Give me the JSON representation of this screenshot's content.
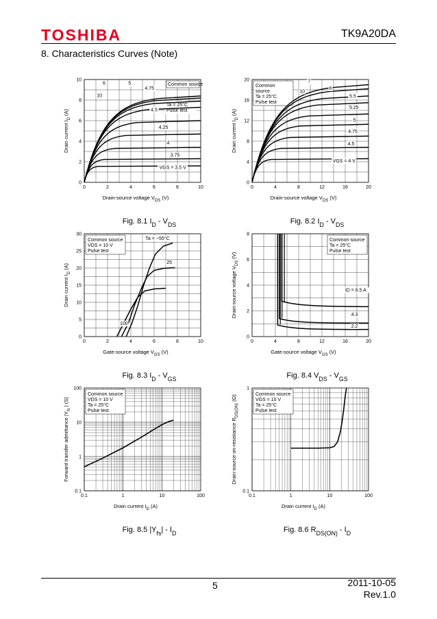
{
  "header": {
    "brand": "TOSHIBA",
    "part_number": "TK9A20DA",
    "brand_color": "#e5001e"
  },
  "section_title": "8.  Characteristics Curves (Note)",
  "footer": {
    "page": "5",
    "date": "2011-10-05",
    "revision": "Rev.1.0"
  },
  "chart_data": [
    {
      "id": "fig81",
      "type": "line",
      "caption_fig": "Fig. 8.1",
      "caption_main": "I",
      "caption_sub1": "D",
      "caption_sep": " - V",
      "caption_sub2": "DS",
      "ylabel_main": "Drain current",
      "ylabel_sym": "I",
      "ylabel_sub": "D",
      "ylabel_unit": "(A)",
      "xlabel_main": "Drain-source voltage",
      "xlabel_sym": "V",
      "xlabel_sub": "DS",
      "xlabel_unit": "(V)",
      "xlim": [
        0,
        10
      ],
      "ylim": [
        0,
        10
      ],
      "xticks": [
        "0",
        "2",
        "4",
        "6",
        "8",
        "10"
      ],
      "yticks": [
        "0",
        "2",
        "4",
        "6",
        "8",
        "10"
      ],
      "legend": [
        "Common source",
        "Ta = 25°C",
        "Pulse test"
      ],
      "series": [
        {
          "name": "10",
          "sat": 8.4
        },
        {
          "name": "6",
          "sat": 8.2
        },
        {
          "name": "5",
          "sat": 7.9
        },
        {
          "name": "4.75",
          "sat": 7.3
        },
        {
          "name": "4.5",
          "sat": 6.0
        },
        {
          "name": "4.25",
          "sat": 4.7
        },
        {
          "name": "4",
          "sat": 3.4
        },
        {
          "name": "3.75",
          "sat": 2.3
        },
        {
          "name": "VGS = 3.5 V",
          "sat": 1.6
        }
      ]
    },
    {
      "id": "fig82",
      "type": "line",
      "caption_fig": "Fig. 8.2",
      "caption_main": "I",
      "caption_sub1": "D",
      "caption_sep": " - V",
      "caption_sub2": "DS",
      "ylabel_main": "Drain current",
      "ylabel_sym": "I",
      "ylabel_sub": "D",
      "ylabel_unit": "(A)",
      "xlabel_main": "Drain-source voltage",
      "xlabel_sym": "V",
      "xlabel_sub": "DS",
      "xlabel_unit": "(V)",
      "xlim": [
        0,
        20
      ],
      "ylim": [
        0,
        20
      ],
      "xticks": [
        "0",
        "4",
        "8",
        "12",
        "16",
        "20"
      ],
      "yticks": [
        "0",
        "4",
        "8",
        "12",
        "16",
        "20"
      ],
      "legend": [
        "Common",
        "source",
        "Ta = 25°C",
        "Pulse test"
      ],
      "series": [
        {
          "name": "10",
          "sat": 19.0
        },
        {
          "name": "7",
          "sat": 18.2
        },
        {
          "name": "6",
          "sat": 16.8
        },
        {
          "name": "5.5",
          "sat": 15.5
        },
        {
          "name": "5.25",
          "sat": 13.3
        },
        {
          "name": "5",
          "sat": 11.3
        },
        {
          "name": "4.75",
          "sat": 9.0
        },
        {
          "name": "4.5",
          "sat": 6.8
        },
        {
          "name": "VGS = 4 V",
          "sat": 4.6
        }
      ]
    },
    {
      "id": "fig83",
      "type": "line",
      "caption_fig": "Fig. 8.3",
      "caption_main": "I",
      "caption_sub1": "D",
      "caption_sep": " - V",
      "caption_sub2": "GS",
      "ylabel_main": "Drain current",
      "ylabel_sym": "I",
      "ylabel_sub": "D",
      "ylabel_unit": "(A)",
      "xlabel_main": "Gate-source voltage",
      "xlabel_sym": "V",
      "xlabel_sub": "GS",
      "xlabel_unit": "(V)",
      "xlim": [
        0,
        10
      ],
      "ylim": [
        0,
        30
      ],
      "xticks": [
        "0",
        "2",
        "4",
        "6",
        "8",
        "10"
      ],
      "yticks": [
        "0",
        "5",
        "10",
        "15",
        "20",
        "25",
        "30"
      ],
      "legend": [
        "Common source",
        "VDS = 10 V",
        "Pulse test"
      ],
      "series": [
        {
          "name": "Ta = −55°C",
          "points": [
            [
              3.6,
              0
            ],
            [
              4.1,
              4
            ],
            [
              4.6,
              9
            ],
            [
              5.1,
              15
            ],
            [
              5.6,
              20
            ],
            [
              6.1,
              24
            ],
            [
              6.8,
              26.4
            ],
            [
              7.6,
              27.3
            ]
          ]
        },
        {
          "name": "25",
          "points": [
            [
              3.2,
              0
            ],
            [
              3.8,
              4
            ],
            [
              4.3,
              9
            ],
            [
              4.9,
              14
            ],
            [
              5.4,
              17.5
            ],
            [
              6.0,
              19.3
            ],
            [
              6.8,
              19.9
            ],
            [
              7.8,
              20.1
            ]
          ]
        },
        {
          "name": "100",
          "points": [
            [
              2.8,
              0
            ],
            [
              3.4,
              4
            ],
            [
              4.0,
              8
            ],
            [
              4.6,
              11.5
            ],
            [
              5.2,
              13.3
            ],
            [
              6.0,
              13.9
            ],
            [
              7.0,
              14.1
            ]
          ]
        }
      ]
    },
    {
      "id": "fig84",
      "type": "line",
      "caption_fig": "Fig. 8.4",
      "caption_main": "V",
      "caption_sub1": "DS",
      "caption_sep": " - V",
      "caption_sub2": "GS",
      "ylabel_main": "Drain-source voltage",
      "ylabel_sym": "V",
      "ylabel_sub": "DS",
      "ylabel_unit": "(V)",
      "xlabel_main": "Gate-source voltage",
      "xlabel_sym": "V",
      "xlabel_sub": "GS",
      "xlabel_unit": "(V)",
      "xlim": [
        0,
        20
      ],
      "ylim": [
        0,
        8
      ],
      "xticks": [
        "0",
        "4",
        "8",
        "12",
        "16",
        "20"
      ],
      "yticks": [
        "0",
        "2",
        "4",
        "6",
        "8"
      ],
      "legend": [
        "Common source",
        "Ta = 25°C",
        "Pulse test"
      ],
      "series": [
        {
          "name": "ID = 8.5 A",
          "x0": 5.1,
          "level": 2.3
        },
        {
          "name": "4.3",
          "x0": 4.7,
          "level": 1.05
        },
        {
          "name": "2.2",
          "x0": 4.4,
          "level": 0.55
        }
      ]
    },
    {
      "id": "fig85",
      "type": "line",
      "caption_fig": "Fig. 8.5",
      "caption_main": "|Y",
      "caption_sub1": "fs",
      "caption_sep": "| - I",
      "caption_sub2": "D",
      "ylabel_main": "Forward transfer admittance",
      "ylabel_sym": "|Y",
      "ylabel_sub": "fs",
      "ylabel_unit": "|  (S)",
      "xlabel_main": "Drain current",
      "xlabel_sym": "I",
      "xlabel_sub": "D",
      "xlabel_unit": "(A)",
      "xlim": [
        0.1,
        100
      ],
      "ylim": [
        0.1,
        100
      ],
      "log": true,
      "xticks": [
        "0.1",
        "1",
        "10",
        "100"
      ],
      "yticks": [
        "0.1",
        "1",
        "10",
        "100"
      ],
      "legend": [
        "Common source",
        "VDS = 10 V",
        "Ta = 25°C",
        "Pulse test"
      ],
      "series": [
        {
          "name": "|Yfs|",
          "points": [
            [
              0.1,
              0.5
            ],
            [
              0.3,
              0.9
            ],
            [
              1,
              1.8
            ],
            [
              3,
              3.7
            ],
            [
              6,
              6.0
            ],
            [
              10,
              8.5
            ],
            [
              15,
              10.5
            ],
            [
              20,
              11.5
            ]
          ]
        }
      ]
    },
    {
      "id": "fig86",
      "type": "line",
      "caption_fig": "Fig. 8.6",
      "caption_main": "R",
      "caption_sub1": "DS(ON)",
      "caption_sep": " - I",
      "caption_sub2": "D",
      "ylabel_main": "Drain-source on-resistance",
      "ylabel_sym": "R",
      "ylabel_sub": "DS(ON)",
      "ylabel_unit": "(Ω)",
      "xlabel_main": "Drain current",
      "xlabel_sym": "I",
      "xlabel_sub": "D",
      "xlabel_unit": "(A)",
      "xlim": [
        0.1,
        100
      ],
      "ylim": [
        0.1,
        1
      ],
      "log": true,
      "xticks": [
        "0.1",
        "1",
        "10",
        "100"
      ],
      "yticks": [
        "0.1",
        "1"
      ],
      "legend": [
        "Common source",
        "VGS = 10 V",
        "Ta = 25°C",
        "Pulse test"
      ],
      "series": [
        {
          "name": "RDS(ON)",
          "points": [
            [
              1,
              0.26
            ],
            [
              5,
              0.26
            ],
            [
              10,
              0.262
            ],
            [
              13,
              0.27
            ],
            [
              16,
              0.3
            ],
            [
              19,
              0.38
            ],
            [
              21,
              0.48
            ],
            [
              23,
              0.62
            ],
            [
              25,
              0.82
            ],
            [
              27,
              1.0
            ]
          ]
        }
      ]
    }
  ]
}
